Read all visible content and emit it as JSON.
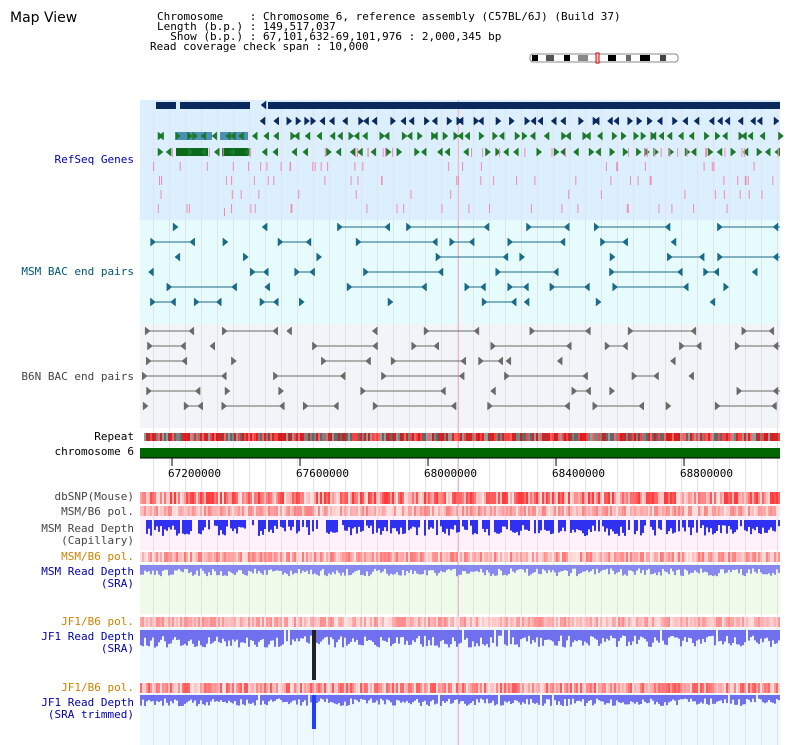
{
  "header": {
    "title": "Map View",
    "chromosome_line": "Chromosome    : Chromosome 6, reference assembly (C57BL/6J) (Build 37)",
    "length_line": "Length (b.p.) : 149,517,037",
    "show_line": "  Show (b.p.) : 67,101,632-69,101,976 : 2,000,345 bp",
    "read_coverage_line": "Read coverage check span : 10,000"
  },
  "tracks": {
    "refseq": "RefSeq Genes",
    "msm_bac": "MSM BAC end pairs",
    "b6n_bac": "B6N BAC end pairs",
    "repeat": "Repeat",
    "chromosome": "chromosome 6",
    "dbsnp": "dbSNP(Mouse)",
    "msm_b6_pol_1": "MSM/B6 pol.",
    "msm_read_depth_cap": "MSM Read Depth\n(Capillary)",
    "msm_b6_pol_2": "MSM/B6 pol.",
    "msm_read_depth_sra": "MSM Read Depth\n(SRA)",
    "jf1_b6_pol_1": "JF1/B6 pol.",
    "jf1_read_depth_sra": "JF1 Read Depth\n(SRA)",
    "jf1_b6_pol_2": "JF1/B6 pol.",
    "jf1_read_depth_trim": "JF1 Read Depth\n(SRA trimmed)"
  },
  "axis": {
    "ticks": [
      "67200000",
      "67600000",
      "68000000",
      "68400000",
      "68800000"
    ]
  },
  "colors": {
    "label_blue": "#0000aa",
    "label_teal": "#005577",
    "label_gray": "#444444",
    "label_orange": "#d08000",
    "refseq_bg": "#dcefff",
    "msm_bg": "#e6fbfb",
    "b6n_bg": "#f2f4f8",
    "chromosome_green": "#006600"
  }
}
